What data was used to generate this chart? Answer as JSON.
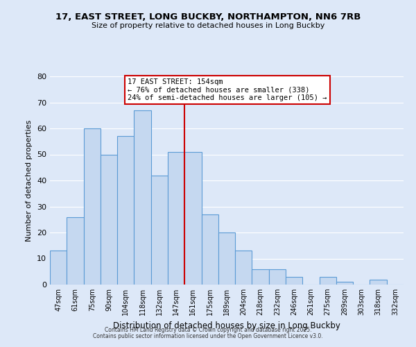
{
  "title": "17, EAST STREET, LONG BUCKBY, NORTHAMPTON, NN6 7RB",
  "subtitle": "Size of property relative to detached houses in Long Buckby",
  "xlabel": "Distribution of detached houses by size in Long Buckby",
  "ylabel": "Number of detached properties",
  "bar_labels": [
    "47sqm",
    "61sqm",
    "75sqm",
    "90sqm",
    "104sqm",
    "118sqm",
    "132sqm",
    "147sqm",
    "161sqm",
    "175sqm",
    "189sqm",
    "204sqm",
    "218sqm",
    "232sqm",
    "246sqm",
    "261sqm",
    "275sqm",
    "289sqm",
    "303sqm",
    "318sqm",
    "332sqm"
  ],
  "bar_values": [
    13,
    26,
    60,
    50,
    57,
    67,
    42,
    51,
    51,
    27,
    20,
    13,
    6,
    6,
    3,
    0,
    3,
    1,
    0,
    2,
    0
  ],
  "bar_color": "#c5d8f0",
  "bar_edge_color": "#5b9bd5",
  "vline_x": 7.5,
  "vline_color": "#cc0000",
  "annotation_box_color": "#ffffff",
  "annotation_border_color": "#cc0000",
  "annotation_line1": "17 EAST STREET: 154sqm",
  "annotation_line2": "← 76% of detached houses are smaller (338)",
  "annotation_line3": "24% of semi-detached houses are larger (105) →",
  "ylim": [
    0,
    80
  ],
  "yticks": [
    0,
    10,
    20,
    30,
    40,
    50,
    60,
    70,
    80
  ],
  "bg_color": "#dde8f8",
  "grid_color": "#ffffff",
  "footer1": "Contains HM Land Registry data © Crown copyright and database right 2025.",
  "footer2": "Contains public sector information licensed under the Open Government Licence v3.0."
}
